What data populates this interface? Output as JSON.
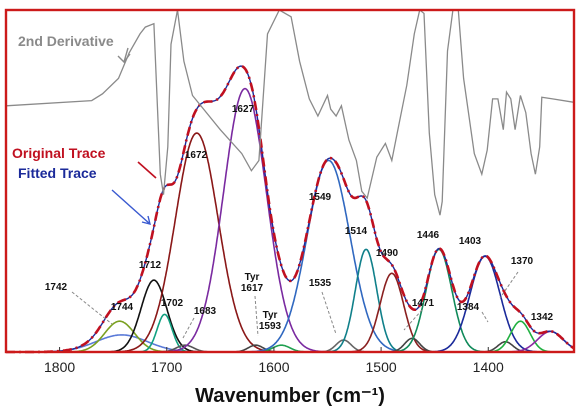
{
  "chart_data": {
    "type": "line",
    "title": "",
    "xlabel": "Wavenumber (cm⁻¹)",
    "ylabel": "",
    "xlim": [
      1850,
      1320
    ],
    "x_ticks": [
      "1800",
      "1700",
      "1600",
      "1500",
      "1400"
    ],
    "x_tick_values": [
      1800,
      1700,
      1600,
      1500,
      1400
    ],
    "ylim": [
      0,
      1.0
    ],
    "grid": false,
    "colors": {
      "frame": "#cc1a1a",
      "original_trace": "#c01020",
      "fitted_trace": "#1b2a9a",
      "second_derivative": "#8a8a8a"
    },
    "labels": {
      "second_derivative": "2nd Derivative",
      "original_trace": "Original Trace",
      "fitted_trace": "Fitted Trace"
    },
    "component_peaks": [
      {
        "label": "1742",
        "center": 1742,
        "height": 0.05,
        "width": 24,
        "color": "#5a7ad8"
      },
      {
        "label": "1744",
        "center": 1744,
        "height": 0.09,
        "width": 14,
        "color": "#7aa020"
      },
      {
        "label": "1712",
        "center": 1712,
        "height": 0.21,
        "width": 12,
        "color": "#111111"
      },
      {
        "label": "1702",
        "center": 1702,
        "height": 0.11,
        "width": 7,
        "color": "#10a080"
      },
      {
        "label": "1683",
        "center": 1683,
        "height": 0.02,
        "width": 8,
        "color": "#555555"
      },
      {
        "label": "1672",
        "center": 1672,
        "height": 0.64,
        "width": 20,
        "color": "#8a1818"
      },
      {
        "label": "1627",
        "center": 1627,
        "height": 0.77,
        "width": 20,
        "color": "#7a2aa0"
      },
      {
        "label": "Tyr\n1617",
        "center": 1617,
        "height": 0.02,
        "width": 7,
        "color": "#444444"
      },
      {
        "label": "Tyr\n1593",
        "center": 1593,
        "height": 0.02,
        "width": 8,
        "color": "#20a050"
      },
      {
        "label": "1549",
        "center": 1549,
        "height": 0.56,
        "width": 20,
        "color": "#3068c0"
      },
      {
        "label": "1535",
        "center": 1535,
        "height": 0.035,
        "width": 7,
        "color": "#666666"
      },
      {
        "label": "1514",
        "center": 1514,
        "height": 0.3,
        "width": 10,
        "color": "#10808a"
      },
      {
        "label": "1490",
        "center": 1490,
        "height": 0.23,
        "width": 11,
        "color": "#8a2020"
      },
      {
        "label": "1471",
        "center": 1471,
        "height": 0.04,
        "width": 7,
        "color": "#444444"
      },
      {
        "label": "1446",
        "center": 1446,
        "height": 0.3,
        "width": 12,
        "color": "#108a5a"
      },
      {
        "label": "1403",
        "center": 1403,
        "height": 0.28,
        "width": 14,
        "color": "#1b2a9a"
      },
      {
        "label": "1384",
        "center": 1384,
        "height": 0.03,
        "width": 7,
        "color": "#444444"
      },
      {
        "label": "1370",
        "center": 1370,
        "height": 0.09,
        "width": 9,
        "color": "#20b040"
      },
      {
        "label": "1342",
        "center": 1342,
        "height": 0.06,
        "width": 12,
        "color": "#8a2aa0"
      }
    ],
    "second_derivative_trace": {
      "x": [
        1850,
        1770,
        1760,
        1745,
        1735,
        1725,
        1720,
        1712,
        1706,
        1703,
        1699,
        1696,
        1690,
        1684,
        1676,
        1650,
        1630,
        1621,
        1614,
        1606,
        1595,
        1584,
        1576,
        1567,
        1559,
        1550,
        1547,
        1542,
        1537,
        1530,
        1523,
        1518,
        1513,
        1504,
        1496,
        1490,
        1485,
        1476,
        1469,
        1464,
        1460,
        1455,
        1450,
        1445,
        1443,
        1438,
        1433,
        1428,
        1423,
        1413,
        1406,
        1401,
        1396,
        1391,
        1386,
        1383,
        1379,
        1375,
        1370,
        1365,
        1360,
        1356,
        1352,
        1350,
        1340,
        1320
      ],
      "y": [
        0.72,
        0.735,
        0.755,
        0.8,
        0.875,
        0.93,
        0.95,
        0.96,
        0.52,
        0.46,
        0.6,
        0.9,
        1.0,
        0.85,
        0.75,
        0.65,
        0.58,
        0.53,
        0.56,
        0.93,
        1.0,
        0.98,
        0.85,
        0.74,
        0.69,
        0.75,
        0.71,
        0.69,
        0.72,
        0.62,
        0.56,
        0.47,
        0.45,
        0.57,
        0.61,
        0.56,
        0.64,
        0.78,
        0.93,
        1.0,
        0.99,
        0.64,
        0.46,
        0.4,
        0.44,
        0.88,
        1.0,
        1.0,
        0.8,
        0.58,
        0.52,
        0.59,
        0.74,
        0.74,
        0.65,
        0.76,
        0.74,
        0.65,
        0.75,
        0.7,
        0.58,
        0.52,
        0.6,
        0.745,
        0.74,
        0.73
      ]
    }
  }
}
